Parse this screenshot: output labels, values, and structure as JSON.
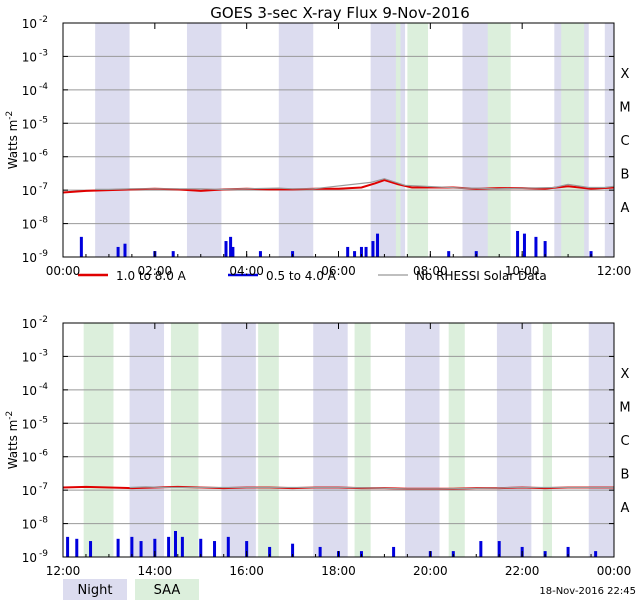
{
  "title": "GOES 3-sec X-ray Flux     9-Nov-2016",
  "timestamp": "18-Nov-2016 22:45",
  "ylabel": "Watts m",
  "ylabel_sup": "-2",
  "colors": {
    "long": "#e00000",
    "short": "#0000dd",
    "norhessi": "#999999",
    "night": "#dcdcef",
    "saa": "#dcefdc",
    "grid": "#999999"
  },
  "legend": [
    {
      "label": "1.0 to 8.0 A",
      "color": "#e00000"
    },
    {
      "label": "0.5 to 4.0 A",
      "color": "#0000dd"
    },
    {
      "label": "No RHESSI Solar Data",
      "color": "#999999"
    }
  ],
  "key": [
    {
      "label": "Night",
      "color": "#dcdcef"
    },
    {
      "label": "SAA",
      "color": "#dcefdc"
    }
  ],
  "chart_data": [
    {
      "type": "line",
      "panel": "top",
      "xlim": [
        "00:00",
        "12:00"
      ],
      "ylim": [
        1e-09,
        0.01
      ],
      "yscale": "log",
      "grid": true,
      "y_tick_exponents": [
        -9,
        -8,
        -7,
        -6,
        -5,
        -4,
        -3,
        -2
      ],
      "x_tick_labels": [
        "00:00",
        "02:00",
        "04:00",
        "06:00",
        "08:00",
        "10:00",
        "12:00"
      ],
      "class_labels": [
        {
          "label": "A",
          "flux": 1e-08
        },
        {
          "label": "B",
          "flux": 1e-07
        },
        {
          "label": "C",
          "flux": 1e-06
        },
        {
          "label": "M",
          "flux": 1e-05
        },
        {
          "label": "X",
          "flux": 0.0001
        }
      ],
      "night_bands_hours": [
        [
          0.7,
          1.45
        ],
        [
          2.7,
          3.45
        ],
        [
          4.7,
          5.45
        ],
        [
          6.7,
          7.45
        ],
        [
          8.7,
          9.45
        ],
        [
          10.7,
          11.45
        ],
        [
          11.8,
          12.0
        ]
      ],
      "saa_bands_hours": [
        [
          7.5,
          7.95
        ],
        [
          9.25,
          9.75
        ],
        [
          10.85,
          11.35
        ],
        [
          7.25,
          7.35
        ]
      ],
      "series": [
        {
          "name": "1.0 to 8.0 A",
          "x_hours": [
            0,
            0.5,
            1,
            1.5,
            2,
            2.5,
            3,
            3.5,
            4,
            4.5,
            5,
            5.5,
            6,
            6.5,
            6.8,
            7.0,
            7.3,
            7.6,
            8.0,
            8.5,
            9.0,
            9.5,
            10.0,
            10.5,
            11.0,
            11.5,
            12.0
          ],
          "values": [
            8.5e-08,
            9.5e-08,
            1e-07,
            1.05e-07,
            1.1e-07,
            1.05e-07,
            9.5e-08,
            1.05e-07,
            1.1e-07,
            1.05e-07,
            1.05e-07,
            1.1e-07,
            1.1e-07,
            1.2e-07,
            1.6e-07,
            2e-07,
            1.5e-07,
            1.2e-07,
            1.2e-07,
            1.2e-07,
            1.1e-07,
            1.15e-07,
            1.15e-07,
            1.1e-07,
            1.3e-07,
            1.1e-07,
            1.2e-07
          ]
        },
        {
          "name": "No RHESSI Solar Data",
          "x_hours": [
            0.7,
            1.0,
            1.45,
            2.7,
            3.0,
            3.45,
            4.7,
            5.0,
            5.45,
            6.7,
            7.0,
            7.45,
            8.7,
            9.0,
            9.45,
            10.7,
            11.0,
            11.45,
            11.8,
            12.0
          ],
          "values": [
            1.05e-07,
            1.05e-07,
            1.1e-07,
            1.1e-07,
            1.1e-07,
            1.05e-07,
            1.15e-07,
            1.1e-07,
            1.1e-07,
            1.7e-07,
            2.2e-07,
            1.4e-07,
            1.15e-07,
            1.15e-07,
            1.1e-07,
            1.2e-07,
            1.5e-07,
            1.2e-07,
            1.2e-07,
            1.3e-07
          ]
        },
        {
          "name": "0.5 to 4.0 A",
          "x_hours": [
            0.4,
            1.2,
            1.35,
            2.0,
            2.4,
            3.55,
            3.65,
            3.7,
            4.3,
            5.0,
            6.2,
            6.35,
            6.5,
            6.6,
            6.75,
            6.85,
            8.4,
            9.0,
            9.9,
            10.05,
            10.3,
            10.5,
            11.5
          ],
          "values": [
            4e-09,
            2e-09,
            2.5e-09,
            1.5e-09,
            1.5e-09,
            3e-09,
            4e-09,
            2e-09,
            1.5e-09,
            1.5e-09,
            2e-09,
            1.5e-09,
            2e-09,
            2e-09,
            3e-09,
            5e-09,
            1.5e-09,
            1.5e-09,
            6e-09,
            5e-09,
            4e-09,
            3e-09,
            1.5e-09
          ]
        }
      ]
    },
    {
      "type": "line",
      "panel": "bottom",
      "xlim": [
        "12:00",
        "00:00"
      ],
      "ylim": [
        1e-09,
        0.01
      ],
      "yscale": "log",
      "grid": true,
      "y_tick_exponents": [
        -9,
        -8,
        -7,
        -6,
        -5,
        -4,
        -3,
        -2
      ],
      "x_tick_labels": [
        "12:00",
        "14:00",
        "16:00",
        "18:00",
        "20:00",
        "22:00",
        "00:00"
      ],
      "class_labels": [
        {
          "label": "A",
          "flux": 1e-08
        },
        {
          "label": "B",
          "flux": 1e-07
        },
        {
          "label": "C",
          "flux": 1e-06
        },
        {
          "label": "M",
          "flux": 1e-05
        },
        {
          "label": "X",
          "flux": 0.0001
        }
      ],
      "night_bands_hours": [
        [
          13.45,
          14.2
        ],
        [
          15.45,
          16.2
        ],
        [
          17.45,
          18.2
        ],
        [
          19.45,
          20.2
        ],
        [
          21.45,
          22.2
        ],
        [
          23.45,
          24.0
        ]
      ],
      "saa_bands_hours": [
        [
          12.45,
          13.1
        ],
        [
          14.35,
          14.95
        ],
        [
          16.25,
          16.7
        ],
        [
          18.35,
          18.7
        ],
        [
          20.4,
          20.75
        ],
        [
          22.45,
          22.65
        ]
      ],
      "series": [
        {
          "name": "1.0 to 8.0 A",
          "x_hours": [
            12,
            12.5,
            13,
            13.5,
            14,
            14.5,
            15,
            15.5,
            16,
            16.5,
            17,
            17.5,
            18,
            18.5,
            19,
            19.5,
            20,
            20.5,
            21,
            21.5,
            22,
            22.5,
            23,
            23.5,
            24
          ],
          "values": [
            1.2e-07,
            1.25e-07,
            1.2e-07,
            1.15e-07,
            1.2e-07,
            1.25e-07,
            1.2e-07,
            1.15e-07,
            1.2e-07,
            1.2e-07,
            1.15e-07,
            1.2e-07,
            1.2e-07,
            1.15e-07,
            1.15e-07,
            1.1e-07,
            1.1e-07,
            1.1e-07,
            1.15e-07,
            1.15e-07,
            1.2e-07,
            1.15e-07,
            1.2e-07,
            1.2e-07,
            1.2e-07
          ]
        },
        {
          "name": "No RHESSI Solar Data",
          "x_hours": [
            13.45,
            13.8,
            14.2,
            15.45,
            15.8,
            16.2,
            17.45,
            17.8,
            18.2,
            19.45,
            19.8,
            20.2,
            21.45,
            21.8,
            22.2,
            23.45,
            24.0
          ],
          "values": [
            1.2e-07,
            1.25e-07,
            1.2e-07,
            1.2e-07,
            1.2e-07,
            1.2e-07,
            1.2e-07,
            1.2e-07,
            1.2e-07,
            1.1e-07,
            1.1e-07,
            1.1e-07,
            1.15e-07,
            1.2e-07,
            1.2e-07,
            1.2e-07,
            1.2e-07
          ]
        },
        {
          "name": "0.5 to 4.0 A",
          "x_hours": [
            12.1,
            12.3,
            12.6,
            13.2,
            13.5,
            13.7,
            14.0,
            14.3,
            14.45,
            14.6,
            15.0,
            15.3,
            15.6,
            16.0,
            16.5,
            17.0,
            17.6,
            18.0,
            18.5,
            19.2,
            20.0,
            20.5,
            21.1,
            21.5,
            22.0,
            22.5,
            23.0,
            23.6
          ],
          "values": [
            4e-09,
            3.5e-09,
            3e-09,
            3.5e-09,
            4e-09,
            3e-09,
            3.5e-09,
            4e-09,
            6e-09,
            4e-09,
            3.5e-09,
            3e-09,
            4e-09,
            3e-09,
            2e-09,
            2.5e-09,
            2e-09,
            1.5e-09,
            1.5e-09,
            2e-09,
            1.5e-09,
            1.5e-09,
            3e-09,
            3e-09,
            2e-09,
            1.5e-09,
            2e-09,
            1.5e-09
          ]
        }
      ]
    }
  ]
}
